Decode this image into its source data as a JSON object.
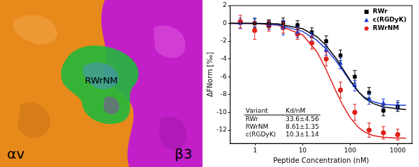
{
  "image": {
    "left_label": "αv",
    "right_label": "β3",
    "ligand_label": "RWrNM"
  },
  "chart_data": {
    "type": "scatter",
    "x_label": "Peptide Concentration (nM)",
    "y_label": "ΔFNorm [‰]",
    "log": "x",
    "xlim": [
      0.3,
      2000
    ],
    "xticks": [
      1,
      10,
      100,
      1000
    ],
    "ylim": [
      -13.5,
      2
    ],
    "yticks": [
      -12,
      -10,
      -8,
      -6,
      -4,
      -2,
      0,
      2
    ],
    "grid": false,
    "legend": "upper right",
    "x": [
      0.49,
      0.98,
      1.95,
      3.9,
      7.8,
      15.6,
      31.3,
      62.5,
      125,
      250,
      500,
      1000
    ],
    "series": [
      {
        "name": "RWr",
        "color": "#000000",
        "marker": "square",
        "values": [
          null,
          0,
          0,
          0.1,
          -0.2,
          -1,
          -2,
          -3.6,
          -6,
          -7.8,
          -9.8,
          -9.4
        ],
        "errors": [
          null,
          0.5,
          0.4,
          0.5,
          0.5,
          0.5,
          0.6,
          0.6,
          0.7,
          0.6,
          0.6,
          0.5
        ],
        "fit": {
          "x": [
            0.3,
            1,
            3,
            10,
            20,
            30,
            50,
            70,
            100,
            150,
            200,
            300,
            500,
            1000,
            1500
          ],
          "values": [
            0,
            0,
            -0.05,
            -0.6,
            -1.5,
            -2.4,
            -3.9,
            -5.1,
            -6.4,
            -7.7,
            -8.4,
            -9.0,
            -9.4,
            -9.6,
            -9.7
          ]
        }
      },
      {
        "name": "c(RGDyK)",
        "color": "#1f3fe0",
        "marker": "triangle",
        "values": [
          0,
          0.1,
          -0.2,
          -0.5,
          -1,
          -1.5,
          -3,
          -4.5,
          -7,
          -8.5,
          -9,
          -9.2
        ],
        "errors": [
          0.6,
          0.5,
          0.5,
          0.8,
          0.6,
          0.5,
          0.6,
          0.6,
          0.6,
          0.6,
          0.5,
          0.5
        ],
        "fit": {
          "x": [
            0.3,
            1,
            3,
            10,
            20,
            30,
            50,
            70,
            100,
            150,
            200,
            300,
            500,
            1000,
            1500
          ],
          "values": [
            0,
            0,
            -0.15,
            -0.9,
            -1.9,
            -2.8,
            -4.2,
            -5.3,
            -6.5,
            -7.7,
            -8.3,
            -8.8,
            -9.1,
            -9.2,
            -9.2
          ]
        }
      },
      {
        "name": "RWrNM",
        "color": "#e0201a",
        "marker": "circle",
        "values": [
          0.2,
          -0.8,
          -0.3,
          -0.5,
          -1.2,
          -2.2,
          -4,
          -7.5,
          -10,
          -12,
          -12.3,
          -12.5
        ],
        "errors": [
          0.7,
          1.0,
          0.6,
          0.6,
          0.6,
          0.7,
          0.8,
          0.9,
          0.9,
          0.8,
          0.7,
          0.6
        ],
        "fit": {
          "x": [
            0.3,
            1,
            3,
            10,
            20,
            30,
            50,
            70,
            100,
            150,
            200,
            300,
            500,
            1000,
            1500
          ],
          "values": [
            0,
            -0.02,
            -0.2,
            -1.3,
            -3.2,
            -5.0,
            -7.6,
            -9.2,
            -10.6,
            -11.7,
            -12.2,
            -12.6,
            -12.8,
            -12.9,
            -12.9
          ]
        }
      }
    ],
    "table": {
      "header": [
        "Variant",
        "Kd/nM"
      ],
      "rows": [
        [
          "RWr",
          "33.6±4.56"
        ],
        [
          "RWrNM",
          "8.61±1.35"
        ],
        [
          "c(RGDyK)",
          "10.3±1.14"
        ]
      ]
    }
  }
}
